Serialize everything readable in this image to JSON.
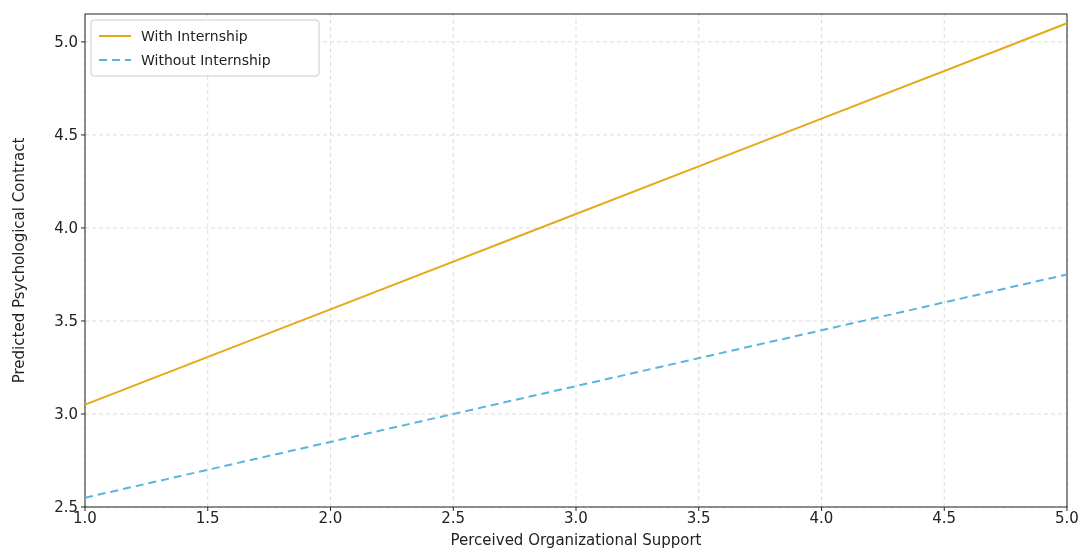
{
  "chart_data": {
    "type": "line",
    "xlabel": "Perceived Organizational Support",
    "ylabel": "Predicted Psychological Contract",
    "x": [
      1.0,
      5.0
    ],
    "series": [
      {
        "name": "With Internship",
        "color": "#e6a817",
        "values": [
          3.05,
          5.1
        ],
        "line_style": "solid"
      },
      {
        "name": "Without Internship",
        "color": "#5ab4e0",
        "values": [
          2.55,
          3.75
        ],
        "line_style": "dashed"
      }
    ],
    "xlim": [
      1.0,
      5.0
    ],
    "xticks": [
      {
        "value": 1.0,
        "label": "1.0"
      },
      {
        "value": 1.5,
        "label": "1.5"
      },
      {
        "value": 2.0,
        "label": "2.0"
      },
      {
        "value": 2.5,
        "label": "2.5"
      },
      {
        "value": 3.0,
        "label": "3.0"
      },
      {
        "value": 3.5,
        "label": "3.5"
      },
      {
        "value": 4.0,
        "label": "4.0"
      },
      {
        "value": 4.5,
        "label": "4.5"
      },
      {
        "value": 5.0,
        "label": "5.0"
      }
    ],
    "ylim": [
      2.5,
      5.15
    ],
    "yticks": [
      {
        "value": 2.5,
        "label": "2.5"
      },
      {
        "value": 3.0,
        "label": "3.0"
      },
      {
        "value": 3.5,
        "label": "3.5"
      },
      {
        "value": 4.0,
        "label": "4.0"
      },
      {
        "value": 4.5,
        "label": "4.5"
      },
      {
        "value": 5.0,
        "label": "5.0"
      }
    ],
    "grid": true,
    "legend": "top left"
  }
}
